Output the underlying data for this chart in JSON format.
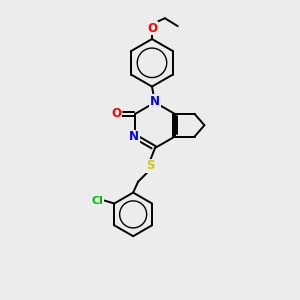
{
  "bg_color": "#ececec",
  "bond_color": "#000000",
  "bond_width": 1.4,
  "atom_colors": {
    "N": "#0000ff",
    "O": "#ff0000",
    "S": "#cccc00",
    "Cl": "#00bb00"
  },
  "font_size": 8.5
}
